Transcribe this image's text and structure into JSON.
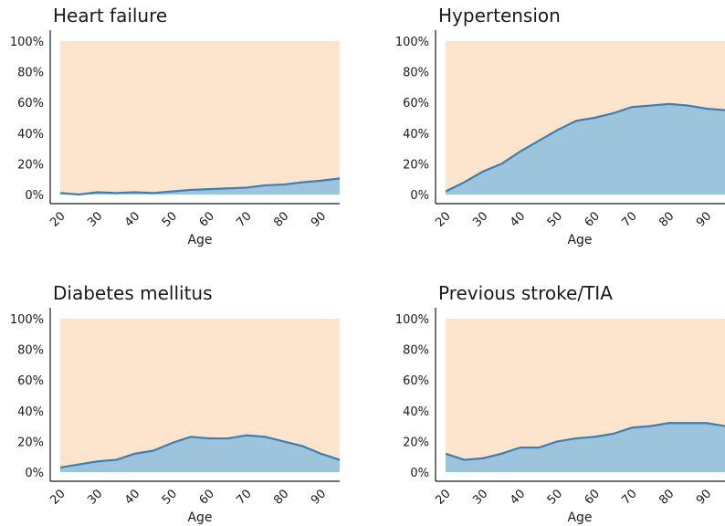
{
  "chart_data": [
    {
      "type": "area",
      "title": "Heart failure",
      "xlabel": "Age",
      "x_ticks": [
        "20",
        "30",
        "40",
        "50",
        "60",
        "70",
        "80",
        "90"
      ],
      "y_ticks": [
        "0%",
        "20%",
        "40%",
        "60%",
        "80%",
        "100%"
      ],
      "xlim": [
        20,
        95
      ],
      "ylim": [
        0,
        100
      ],
      "x": [
        20,
        25,
        30,
        35,
        40,
        45,
        50,
        55,
        60,
        65,
        70,
        75,
        80,
        85,
        90,
        95
      ],
      "values": [
        1,
        0,
        1.5,
        1,
        1.5,
        1,
        2,
        3,
        3.5,
        4,
        4.5,
        6,
        6.5,
        8,
        9,
        10.5
      ],
      "background_color": "#fde4cc",
      "fill_color": "#9dc4dd",
      "line_color": "#3a7fb5"
    },
    {
      "type": "area",
      "title": "Hypertension",
      "xlabel": "Age",
      "x_ticks": [
        "20",
        "30",
        "40",
        "50",
        "60",
        "70",
        "80",
        "90"
      ],
      "y_ticks": [
        "0%",
        "20%",
        "40%",
        "60%",
        "80%",
        "100%"
      ],
      "xlim": [
        20,
        95
      ],
      "ylim": [
        0,
        100
      ],
      "x": [
        20,
        25,
        30,
        35,
        40,
        45,
        50,
        55,
        60,
        65,
        70,
        75,
        80,
        85,
        90,
        95
      ],
      "values": [
        2,
        8,
        15,
        20,
        28,
        35,
        42,
        48,
        50,
        53,
        57,
        58,
        59,
        58,
        56,
        55
      ],
      "background_color": "#fde4cc",
      "fill_color": "#9dc4dd",
      "line_color": "#3a7fb5"
    },
    {
      "type": "area",
      "title": "Diabetes mellitus",
      "xlabel": "Age",
      "x_ticks": [
        "20",
        "30",
        "40",
        "50",
        "60",
        "70",
        "80",
        "90"
      ],
      "y_ticks": [
        "0%",
        "20%",
        "40%",
        "60%",
        "80%",
        "100%"
      ],
      "xlim": [
        20,
        95
      ],
      "ylim": [
        0,
        100
      ],
      "x": [
        20,
        25,
        30,
        35,
        40,
        45,
        50,
        55,
        60,
        65,
        70,
        75,
        80,
        85,
        90,
        95
      ],
      "values": [
        3,
        5,
        7,
        8,
        12,
        14,
        19,
        23,
        22,
        22,
        24,
        23,
        20,
        17,
        12,
        8
      ],
      "background_color": "#fde4cc",
      "fill_color": "#9dc4dd",
      "line_color": "#3a7fb5"
    },
    {
      "type": "area",
      "title": "Previous stroke/TIA",
      "xlabel": "Age",
      "x_ticks": [
        "20",
        "30",
        "40",
        "50",
        "60",
        "70",
        "80",
        "90"
      ],
      "y_ticks": [
        "0%",
        "20%",
        "40%",
        "60%",
        "80%",
        "100%"
      ],
      "xlim": [
        20,
        95
      ],
      "ylim": [
        0,
        100
      ],
      "x": [
        20,
        25,
        30,
        35,
        40,
        45,
        50,
        55,
        60,
        65,
        70,
        75,
        80,
        85,
        90,
        95
      ],
      "values": [
        12,
        8,
        9,
        12,
        16,
        16,
        20,
        22,
        23,
        25,
        29,
        30,
        32,
        32,
        32,
        30
      ],
      "background_color": "#fde4cc",
      "fill_color": "#9dc4dd",
      "line_color": "#3a7fb5"
    }
  ]
}
